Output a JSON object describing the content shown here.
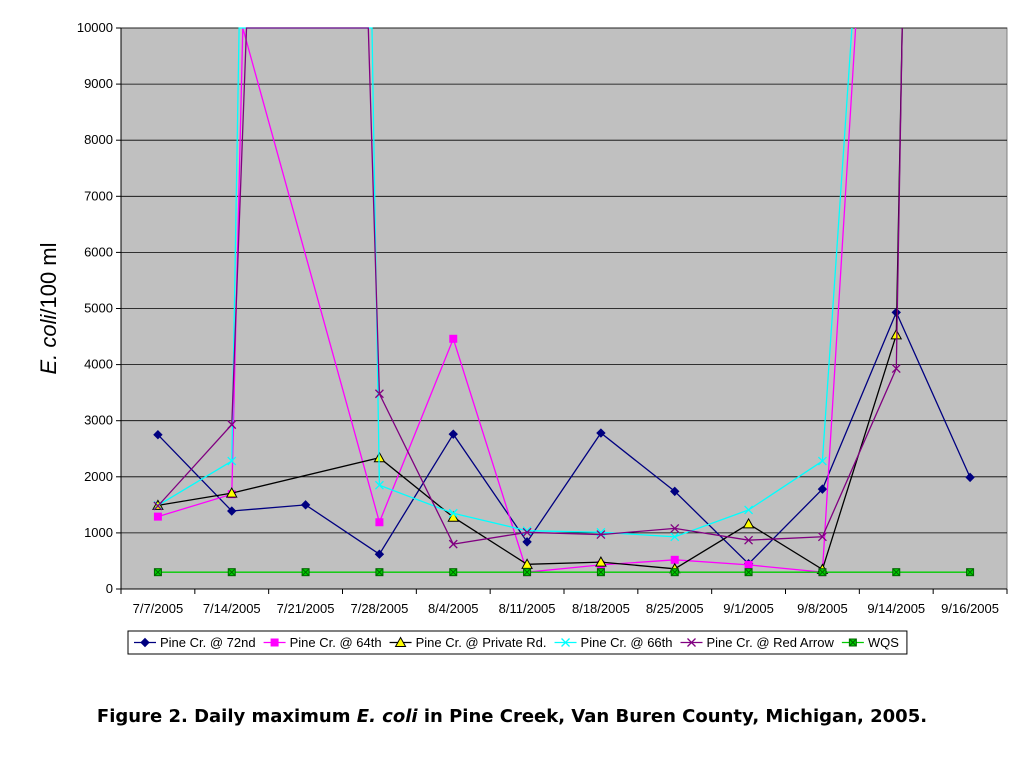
{
  "chart_data": {
    "type": "line",
    "title": "",
    "xlabel": "",
    "ylabel_italic": "E. coli",
    "ylabel_rest": "/100 ml",
    "ylim": [
      0,
      10000
    ],
    "yticks": [
      0,
      1000,
      2000,
      3000,
      4000,
      5000,
      6000,
      7000,
      8000,
      9000,
      10000
    ],
    "grid": true,
    "legend": "bottom",
    "plot_background": "#c0c0c0",
    "categories": [
      "7/7/2005",
      "7/14/2005",
      "7/21/2005",
      "7/28/2005",
      "8/4/2005",
      "8/11/2005",
      "8/18/2005",
      "8/25/2005",
      "9/1/2005",
      "9/8/2005",
      "9/14/2005",
      "9/16/2005"
    ],
    "series": [
      {
        "name": "Pine Cr. @ 72nd",
        "color": "#000080",
        "marker": "diamond",
        "points": [
          [
            0,
            2750
          ],
          [
            1,
            1390
          ],
          [
            2,
            1500
          ],
          [
            3,
            620
          ],
          [
            4,
            2760
          ],
          [
            5,
            840
          ],
          [
            6,
            2780
          ],
          [
            7,
            1740
          ],
          [
            8,
            450
          ],
          [
            9,
            1780
          ],
          [
            10,
            4930
          ],
          [
            11,
            1990
          ]
        ]
      },
      {
        "name": "Pine Cr. @ 64th",
        "color": "#ff00ff",
        "marker": "square",
        "points": [
          [
            0,
            1290
          ],
          [
            1,
            1690
          ],
          [
            1.15,
            10000
          ],
          [
            3,
            1190
          ],
          [
            4,
            4460
          ],
          [
            5,
            300
          ],
          [
            6,
            430
          ],
          [
            7,
            520
          ],
          [
            8,
            430
          ],
          [
            9,
            300
          ],
          [
            9.45,
            10000
          ]
        ]
      },
      {
        "name": "Pine Cr. @ Private Rd.",
        "color": "#000000",
        "marker": "triangle",
        "points": [
          [
            0,
            1490
          ],
          [
            1,
            1710
          ],
          [
            3,
            2340
          ],
          [
            4,
            1280
          ],
          [
            5,
            440
          ],
          [
            6,
            480
          ],
          [
            7,
            360
          ],
          [
            8,
            1160
          ],
          [
            9,
            350
          ],
          [
            10,
            4530
          ],
          [
            10.08,
            10000
          ]
        ]
      },
      {
        "name": "Pine Cr. @ 66th",
        "color": "#00ffff",
        "marker": "x",
        "points": [
          [
            0,
            1490
          ],
          [
            1,
            2280
          ],
          [
            1.1,
            10000
          ],
          [
            2.9,
            10000
          ],
          [
            3,
            1850
          ],
          [
            4,
            1350
          ],
          [
            5,
            1040
          ],
          [
            6,
            1010
          ],
          [
            7,
            930
          ],
          [
            8,
            1410
          ],
          [
            9,
            2280
          ],
          [
            9.4,
            10000
          ]
        ]
      },
      {
        "name": "Pine Cr. @ Red Arrow",
        "color": "#800080",
        "marker": "cross",
        "points": [
          [
            0,
            1480
          ],
          [
            1,
            2930
          ],
          [
            1.2,
            10000
          ],
          [
            2.85,
            10000
          ],
          [
            3,
            3480
          ],
          [
            4,
            800
          ],
          [
            5,
            1010
          ],
          [
            6,
            970
          ],
          [
            7,
            1080
          ],
          [
            8,
            870
          ],
          [
            9,
            930
          ],
          [
            10,
            3930
          ],
          [
            10.08,
            10000
          ]
        ]
      },
      {
        "name": "WQS",
        "color": "#00cc00",
        "marker": "boxcross",
        "points": [
          [
            0,
            300
          ],
          [
            1,
            300
          ],
          [
            2,
            300
          ],
          [
            3,
            300
          ],
          [
            4,
            300
          ],
          [
            5,
            300
          ],
          [
            6,
            300
          ],
          [
            7,
            300
          ],
          [
            8,
            300
          ],
          [
            9,
            300
          ],
          [
            10,
            300
          ],
          [
            11,
            300
          ]
        ]
      }
    ]
  },
  "caption": {
    "prefix": "Figure 2. Daily maximum ",
    "italic": "E. coli",
    "suffix": " in Pine Creek, Van Buren County, Michigan, 2005."
  }
}
